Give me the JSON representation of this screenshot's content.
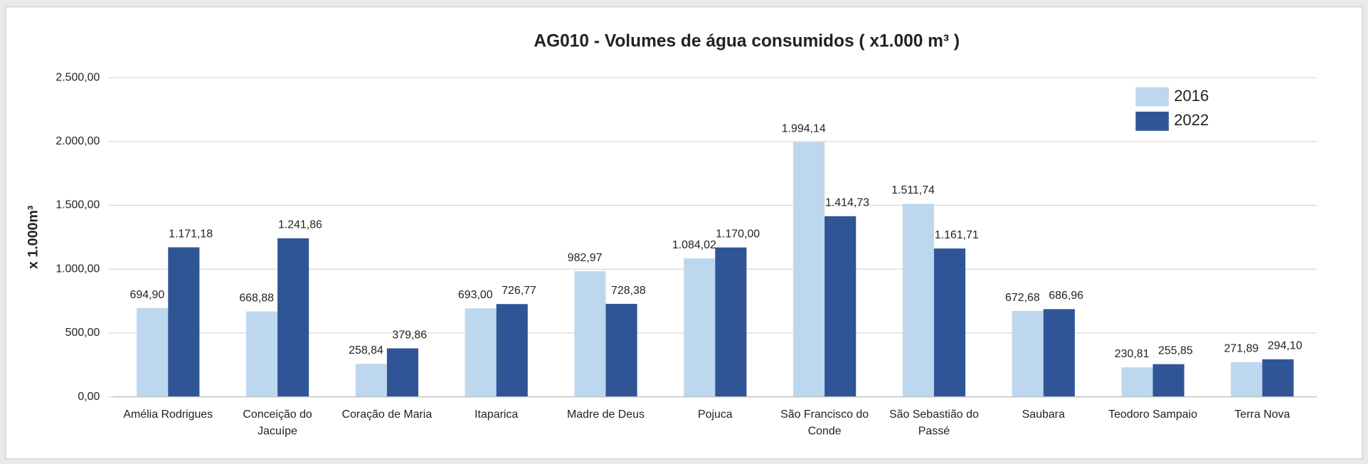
{
  "chart_data": {
    "type": "bar",
    "title": "AG010 - Volumes de água consumidos ( x1.000 m³ )",
    "y_label": "x 1.000m³",
    "categories": [
      "Amélia Rodrigues",
      "Conceição do Jacuípe",
      "Coração de Maria",
      "Itaparica",
      "Madre de Deus",
      "Pojuca",
      "São Francisco do Conde",
      "São Sebastião do Passé",
      "Saubara",
      "Teodoro Sampaio",
      "Terra Nova"
    ],
    "series": [
      {
        "name": "2016",
        "color": "#bdd7ee",
        "values": [
          694.9,
          668.88,
          258.84,
          693.0,
          982.97,
          1084.02,
          1994.14,
          1511.74,
          672.68,
          230.81,
          271.89
        ],
        "value_labels": [
          "694,90",
          "668,88",
          "258,84",
          "693,00",
          "982,97",
          "1.084,02",
          "1.994,14",
          "1.511,74",
          "672,68",
          "230,81",
          "271,89"
        ]
      },
      {
        "name": "2022",
        "color": "#2f5597",
        "values": [
          1171.18,
          1241.86,
          379.86,
          726.77,
          728.38,
          1170.0,
          1414.73,
          1161.71,
          686.96,
          255.85,
          294.1
        ],
        "value_labels": [
          "1.171,18",
          "1.241,86",
          "379,86",
          "726,77",
          "728,38",
          "1.170,00",
          "1.414,73",
          "1.161,71",
          "686,96",
          "255,85",
          "294,10"
        ]
      }
    ],
    "ylim": [
      0,
      2500
    ],
    "yticks": [
      {
        "value": 0,
        "label": "0,00"
      },
      {
        "value": 500,
        "label": "500,00"
      },
      {
        "value": 1000,
        "label": "1.000,00"
      },
      {
        "value": 1500,
        "label": "1.500,00"
      },
      {
        "value": 2000,
        "label": "2.000,00"
      },
      {
        "value": 2500,
        "label": "2.500,00"
      }
    ],
    "grid": true,
    "legend": "upper right"
  }
}
